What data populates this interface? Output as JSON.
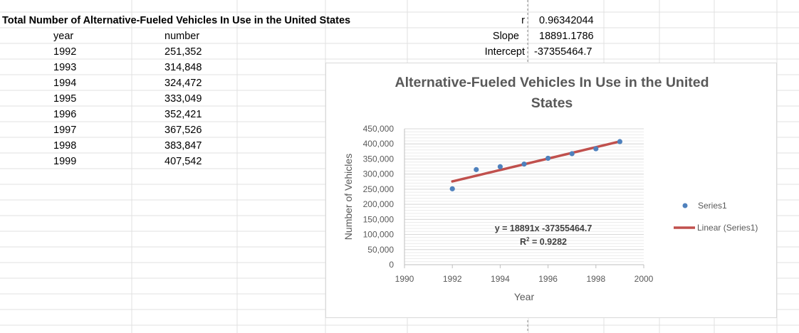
{
  "sheet": {
    "title": "Total Number of Alternative-Fueled Vehicles In Use in the United States",
    "col_headers": {
      "year": "year",
      "number": "number"
    },
    "rows": [
      {
        "year": "1992",
        "number": "251,352"
      },
      {
        "year": "1993",
        "number": "314,848"
      },
      {
        "year": "1994",
        "number": "324,472"
      },
      {
        "year": "1995",
        "number": "333,049"
      },
      {
        "year": "1996",
        "number": "352,421"
      },
      {
        "year": "1997",
        "number": "367,526"
      },
      {
        "year": "1998",
        "number": "383,847"
      },
      {
        "year": "1999",
        "number": "407,542"
      }
    ],
    "stats": [
      {
        "label": "r",
        "value": "0.96342044"
      },
      {
        "label": "Slope",
        "value": "18891.1786"
      },
      {
        "label": "Intercept",
        "value": "-37355464.7"
      }
    ]
  },
  "colors": {
    "series": "#4f81bd",
    "trend": "#c0504d",
    "grid": "#d9d9d9",
    "text": "#595959"
  },
  "chart_data": {
    "type": "scatter",
    "title": "Alternative-Fueled Vehicles In Use in the United States",
    "title_lines": [
      "Alternative-Fueled Vehicles In Use in the United",
      "States"
    ],
    "xlabel": "Year",
    "ylabel": "Number of Vehicles",
    "xlim": [
      1990,
      2000
    ],
    "ylim": [
      0,
      450000
    ],
    "x_ticks": [
      "1990",
      "1992",
      "1994",
      "1996",
      "1998",
      "2000"
    ],
    "x_tick_values": [
      1990,
      1992,
      1994,
      1996,
      1998,
      2000
    ],
    "y_ticks": [
      "0",
      "50,000",
      "100,000",
      "150,000",
      "200,000",
      "250,000",
      "300,000",
      "350,000",
      "400,000",
      "450,000"
    ],
    "y_tick_values": [
      0,
      50000,
      100000,
      150000,
      200000,
      250000,
      300000,
      350000,
      400000,
      450000
    ],
    "y_minor_step": 10000,
    "series": [
      {
        "name": "Series1",
        "x": [
          1992,
          1993,
          1994,
          1995,
          1996,
          1997,
          1998,
          1999
        ],
        "y": [
          251352,
          314848,
          324472,
          333049,
          352421,
          367526,
          383847,
          407542
        ]
      }
    ],
    "trendline": {
      "name": "Linear (Series1)",
      "slope": 18891.1786,
      "intercept": -37355464.7,
      "x_range": [
        1992,
        1999
      ]
    },
    "equation": "y = 18891x -37355464.7",
    "r_squared_label": "R",
    "r_squared_sup": "2",
    "r_squared_value": " = 0.9282",
    "legend": [
      {
        "label": "Series1",
        "kind": "marker"
      },
      {
        "label": "Linear (Series1)",
        "kind": "line"
      }
    ],
    "legend_position": "right"
  }
}
